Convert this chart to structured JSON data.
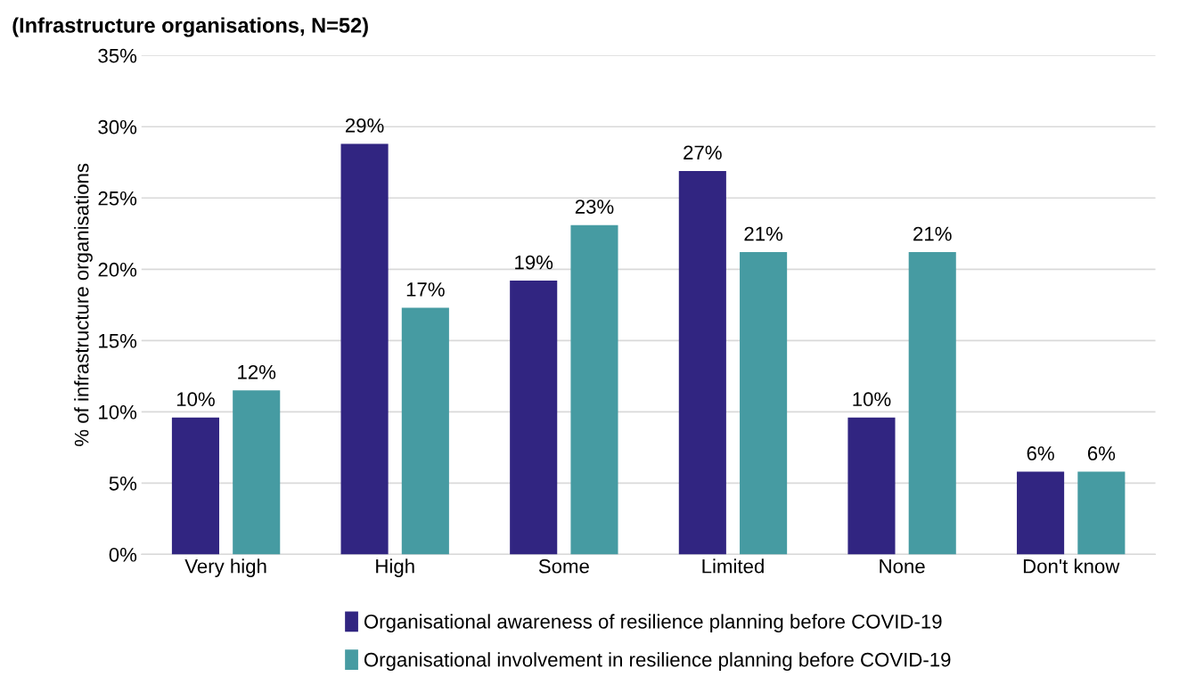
{
  "chart_data": {
    "type": "bar",
    "title": "(Infrastructure organisations, N=52)",
    "ylabel": "% of infrastructure organisations",
    "categories": [
      "Very high",
      "High",
      "Some",
      "Limited",
      "None",
      "Don't know"
    ],
    "series": [
      {
        "name": "Organisational awareness of resilience planning before COVID-19",
        "color": "#312581",
        "values": [
          9.6,
          28.8,
          19.2,
          26.9,
          9.6,
          5.8
        ],
        "value_labels": [
          "10%",
          "29%",
          "19%",
          "27%",
          "10%",
          "6%"
        ]
      },
      {
        "name": "Organisational involvement in resilience planning before COVID-19",
        "color": "#469ba2",
        "values": [
          11.5,
          17.3,
          23.1,
          21.2,
          21.2,
          5.8
        ],
        "value_labels": [
          "12%",
          "17%",
          "23%",
          "21%",
          "21%",
          "6%"
        ]
      }
    ],
    "ylim": [
      0,
      35
    ],
    "yticks": [
      {
        "value": 0,
        "label": "0%"
      },
      {
        "value": 5,
        "label": "5%"
      },
      {
        "value": 10,
        "label": "10%"
      },
      {
        "value": 15,
        "label": "15%"
      },
      {
        "value": 20,
        "label": "20%"
      },
      {
        "value": 25,
        "label": "25%"
      },
      {
        "value": 30,
        "label": "30%"
      },
      {
        "value": 35,
        "label": "35%"
      }
    ],
    "grid": "y",
    "legend": "bottom"
  }
}
